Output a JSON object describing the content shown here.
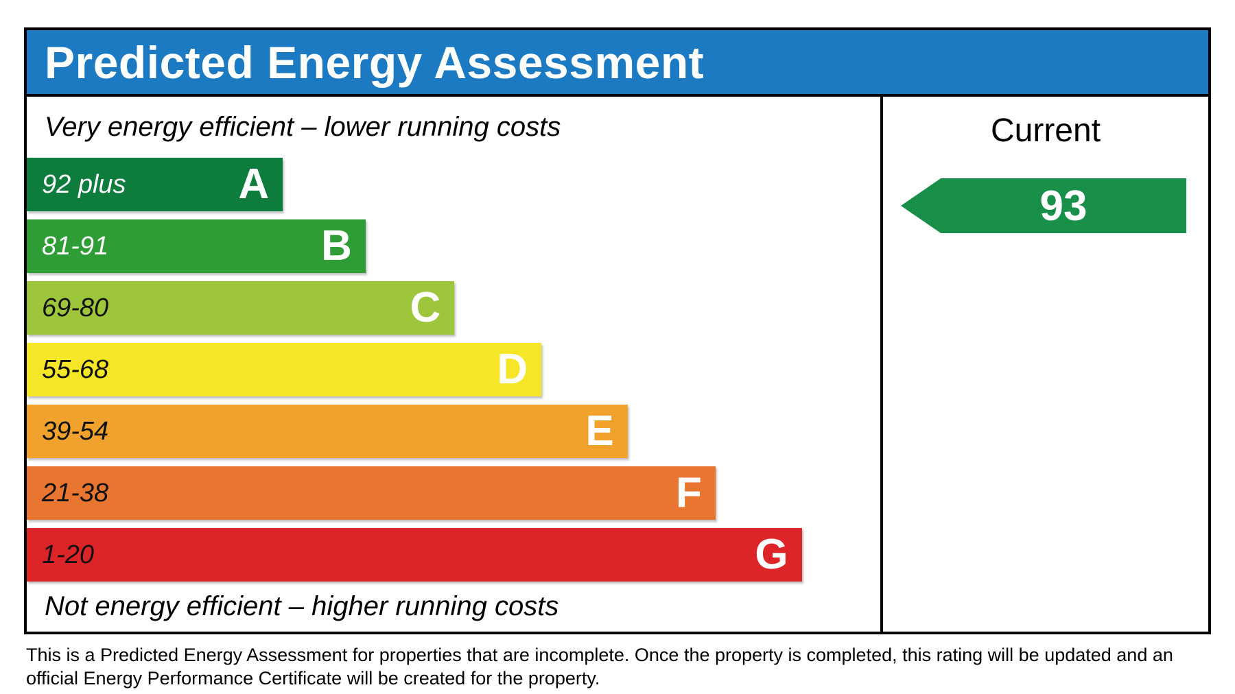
{
  "title": "Predicted Energy Assessment",
  "colors": {
    "header_blue": "#1c7ac2",
    "border_black": "#000000",
    "arrow_green": "#18904a"
  },
  "chart": {
    "caption_top": "Very energy efficient – lower running costs",
    "caption_bottom": "Not energy efficient – higher running costs",
    "bands": [
      {
        "letter": "A",
        "range": "92 plus",
        "color": "#0e7c3d",
        "width_pct": 30.0,
        "range_text_color": "#ffffff"
      },
      {
        "letter": "B",
        "range": "81-91",
        "color": "#2e9d35",
        "width_pct": 39.7,
        "range_text_color": "#ffffff"
      },
      {
        "letter": "C",
        "range": "69-80",
        "color": "#9ec63c",
        "width_pct": 50.1,
        "range_text_color": "#111111"
      },
      {
        "letter": "D",
        "range": "55-68",
        "color": "#f5e628",
        "width_pct": 60.3,
        "range_text_color": "#111111"
      },
      {
        "letter": "E",
        "range": "39-54",
        "color": "#f0a22d",
        "width_pct": 70.4,
        "range_text_color": "#111111"
      },
      {
        "letter": "F",
        "range": "21-38",
        "color": "#e97630",
        "width_pct": 80.7,
        "range_text_color": "#111111"
      },
      {
        "letter": "G",
        "range": "1-20",
        "color": "#dd2428",
        "width_pct": 90.8,
        "range_text_color": "#111111"
      }
    ]
  },
  "current": {
    "header": "Current",
    "value": "93"
  },
  "footer": {
    "line1": "This is a Predicted Energy Assessment for properties that are incomplete. Once the property is completed, this rating will be updated and an",
    "line2": "official Energy Performance Certificate will be created for the property."
  },
  "chart_data": {
    "type": "bar",
    "title": "Predicted Energy Assessment",
    "categories": [
      "A",
      "B",
      "C",
      "D",
      "E",
      "F",
      "G"
    ],
    "band_score_ranges": [
      "92 plus",
      "81-91",
      "69-80",
      "55-68",
      "39-54",
      "21-38",
      "1-20"
    ],
    "bar_relative_widths_pct": [
      30.0,
      39.7,
      50.1,
      60.3,
      70.4,
      80.7,
      90.8
    ],
    "bar_colors": [
      "#0e7c3d",
      "#2e9d35",
      "#9ec63c",
      "#f5e628",
      "#f0a22d",
      "#e97630",
      "#dd2428"
    ],
    "current_rating": 93,
    "current_band": "A",
    "legend_position": "right-column",
    "annotations": [
      "Very energy efficient – lower running costs",
      "Not energy efficient – higher running costs",
      "Current"
    ]
  }
}
